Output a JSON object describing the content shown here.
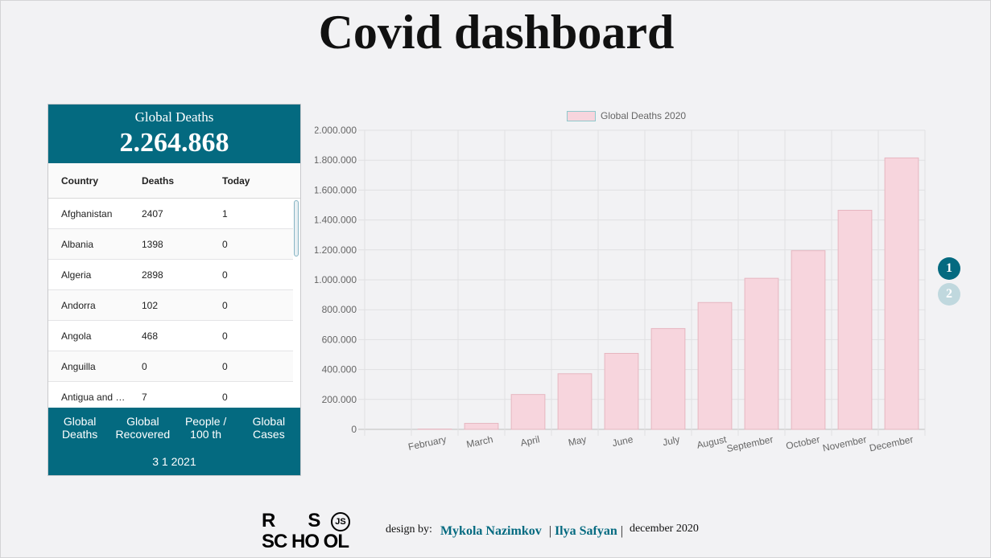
{
  "page": {
    "title": "Covid dashboard"
  },
  "summary": {
    "label": "Global Deaths",
    "value": "2.264.868"
  },
  "table": {
    "headers": [
      "Country",
      "Deaths",
      "Today"
    ],
    "rows": [
      {
        "country": "Afghanistan",
        "deaths": "2407",
        "today": "1"
      },
      {
        "country": "Albania",
        "deaths": "1398",
        "today": "0"
      },
      {
        "country": "Algeria",
        "deaths": "2898",
        "today": "0"
      },
      {
        "country": "Andorra",
        "deaths": "102",
        "today": "0"
      },
      {
        "country": "Angola",
        "deaths": "468",
        "today": "0"
      },
      {
        "country": "Anguilla",
        "deaths": "0",
        "today": "0"
      },
      {
        "country": "Antigua and Barbuda",
        "deaths": "7",
        "today": "0"
      }
    ]
  },
  "tabs": [
    {
      "label": "Global Deaths"
    },
    {
      "label": "Global Recovered"
    },
    {
      "label": "People / 100 th"
    },
    {
      "label": "Global Cases"
    }
  ],
  "panel_footer": {
    "date": "3 1 2021"
  },
  "pager": {
    "pages": [
      "1",
      "2"
    ],
    "active": "1"
  },
  "colors": {
    "accent": "#046a80",
    "bar_fill": "#f7d5dd",
    "bar_stroke": "#e6b6c0"
  },
  "chart_data": {
    "type": "bar",
    "legend": "Global Deaths 2020",
    "legend_placement": "top-center",
    "grid": true,
    "categories": [
      "",
      "February",
      "March",
      "April",
      "May",
      "June",
      "July",
      "August",
      "September",
      "October",
      "November",
      "December"
    ],
    "values": [
      0,
      2000,
      40000,
      233000,
      372000,
      508000,
      674000,
      848000,
      1010000,
      1195000,
      1465000,
      1815000
    ],
    "ylim": [
      0,
      2000000
    ],
    "yticks": [
      "0",
      "200.000",
      "400.000",
      "600.000",
      "800.000",
      "1.000.000",
      "1.200.000",
      "1.400.000",
      "1.600.000",
      "1.800.000",
      "2.000.000"
    ]
  },
  "footer": {
    "logo_text": "RS SCHOOL JS",
    "design_by": "design by:",
    "authors": [
      "Mykola Nazimkov",
      "Ilya Safyan"
    ],
    "separator": "|",
    "date": "december 2020"
  }
}
